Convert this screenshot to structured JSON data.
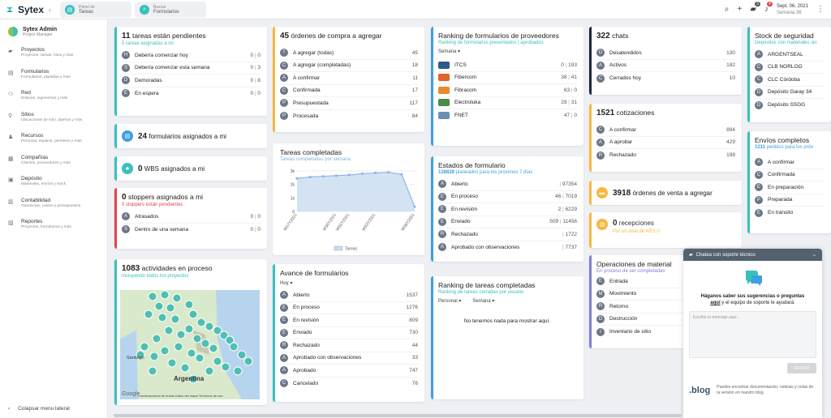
{
  "app": {
    "name": "Sytex",
    "quick_tabs": [
      {
        "title": "Panel de",
        "sub": "Tareas"
      },
      {
        "title": "Buscar",
        "sub": "Formularios"
      }
    ],
    "notifications_badge": "3",
    "alerts_badge": "4",
    "date": "Sept. 06, 2021",
    "week": "Semana 36"
  },
  "user": {
    "name": "Sytex Admin",
    "role": "Project Manager"
  },
  "sidebar": [
    {
      "icon": "folder-icon",
      "label": "Proyectos",
      "desc": "Proyectos, tareas, hitos y más"
    },
    {
      "icon": "forms-icon",
      "label": "Formularios",
      "desc": "Formularios, plantillas y más"
    },
    {
      "icon": "network-icon",
      "label": "Red",
      "desc": "Enlaces, ingenierías y más"
    },
    {
      "icon": "location-icon",
      "label": "Sitios",
      "desc": "Ubicaciones de sitio, dueños y más"
    },
    {
      "icon": "resources-icon",
      "label": "Recursos",
      "desc": "Personal, equipos, permisos y más"
    },
    {
      "icon": "company-icon",
      "label": "Compañías",
      "desc": "Clientes, proveedores y más"
    },
    {
      "icon": "warehouse-icon",
      "label": "Depósito",
      "desc": "Materiales, envíos y stock"
    },
    {
      "icon": "accounting-icon",
      "label": "Contabilidad",
      "desc": "Ganancias, costos y presupuestos"
    },
    {
      "icon": "reports-icon",
      "label": "Reportes",
      "desc": "Proyectos, formularios y más"
    }
  ],
  "collapse_label": "Colapsar menu lateral",
  "tasks": {
    "count": "11",
    "title": "tareas están pendientes",
    "sub": "5 tareas asignadas a mi",
    "rows": [
      {
        "l": "H",
        "label": "Debería comenzar hoy",
        "a": "0",
        "b": "0"
      },
      {
        "l": "S",
        "label": "Debería comenzar esta semana",
        "a": "0",
        "b": "3"
      },
      {
        "l": "D",
        "label": "Demoradas",
        "a": "0",
        "b": "8"
      },
      {
        "l": "E",
        "label": "En espera",
        "a": "0",
        "b": "0"
      }
    ]
  },
  "forms_assigned": {
    "count": "24",
    "label": "formularios asignados a mi"
  },
  "wbs": {
    "count": "0",
    "label": "WBS asignados a mi"
  },
  "stoppers": {
    "count": "0",
    "title": "stoppers asignados a mi",
    "sub": "0 stoppers están pendientes",
    "rows": [
      {
        "l": "A",
        "label": "Atrasados",
        "a": "0",
        "b": "0"
      },
      {
        "l": "S",
        "label": "Dentro de una semana",
        "a": "0",
        "b": "0"
      }
    ]
  },
  "activities": {
    "count": "1083",
    "title": "actividades en proceso",
    "sub": "Incluyendo todos los proyectos",
    "map_labels": {
      "santiago": "Santiago",
      "argentina": "Argentina",
      "google": "Google",
      "attribution": "Combinaciones de teclas   Datos del mapa   Términos de uso"
    }
  },
  "purchase": {
    "count": "45",
    "title": "órdenes de compra a agregar",
    "rows": [
      {
        "l": "T",
        "label": "A agregar (todas)",
        "v": "45"
      },
      {
        "l": "C",
        "label": "A agregar (completadas)",
        "v": "18"
      },
      {
        "l": "A",
        "label": "A confirmar",
        "v": "11"
      },
      {
        "l": "C",
        "label": "Confirmada",
        "v": "17"
      },
      {
        "l": "P",
        "label": "Presupuestada",
        "v": "117"
      },
      {
        "l": "P",
        "label": "Procesada",
        "v": "84"
      }
    ]
  },
  "completed_tasks": {
    "title": "Tareas completadas",
    "sub": "Tareas completadas por semana",
    "legend": "Tareas"
  },
  "chart_data": {
    "type": "area",
    "title": "Tareas completadas",
    "categories": [
      "W27Y2021",
      "W28Y2021",
      "W29Y2021",
      "W30Y2021",
      "W31Y2021",
      "W32Y2021",
      "W33Y2021",
      "W34Y2021",
      "W35Y2021",
      "W36Y2021"
    ],
    "series": [
      {
        "name": "Tareas",
        "values": [
          2450,
          2550,
          2600,
          2650,
          2700,
          2800,
          2850,
          2900,
          2750,
          350
        ]
      }
    ],
    "yticks": [
      "0",
      "1k",
      "2k",
      "3k"
    ],
    "ylim": [
      0,
      3000
    ],
    "xticks": [
      "W27Y2021",
      "W30Y2021",
      "W31Y2021",
      "W33Y2021",
      "W36Y2021"
    ],
    "color": "#8fb7e3"
  },
  "form_progress": {
    "title": "Avance de formularios",
    "filter": "Hoy",
    "rows": [
      {
        "l": "A",
        "label": "Abierto",
        "v": "1537"
      },
      {
        "l": "E",
        "label": "En proceso",
        "v": "1276"
      },
      {
        "l": "E",
        "label": "En revisión",
        "v": "809"
      },
      {
        "l": "E",
        "label": "Enviado",
        "v": "730"
      },
      {
        "l": "R",
        "label": "Rechazado",
        "v": "44"
      },
      {
        "l": "A",
        "label": "Aprobado con observaciones",
        "v": "33"
      },
      {
        "l": "A",
        "label": "Aprobado",
        "v": "747"
      },
      {
        "l": "C",
        "label": "Cancelado",
        "v": "76"
      }
    ]
  },
  "supplier_ranking": {
    "title": "Ranking de formularios de proveedores",
    "sub": "Ranking de formularios presentados | aprobados",
    "filter": "Semana",
    "rows": [
      {
        "label": "ITCS",
        "a": "0",
        "b": "193"
      },
      {
        "label": "Fibercom",
        "a": "38",
        "b": "41"
      },
      {
        "label": "Fibracom",
        "a": "63",
        "b": "0"
      },
      {
        "label": "Electroluka",
        "a": "29",
        "b": "31"
      },
      {
        "label": "FNET",
        "a": "47",
        "b": "0"
      }
    ]
  },
  "form_states": {
    "title": "Estados de formulario",
    "count": "128828",
    "sub": "planeados para los próximos 7 días",
    "rows": [
      {
        "l": "A",
        "label": "Abierto",
        "a": "",
        "b": "97354"
      },
      {
        "l": "E",
        "label": "En proceso",
        "a": "46",
        "b": "7019"
      },
      {
        "l": "E",
        "label": "En revisión",
        "a": "2",
        "b": "6229"
      },
      {
        "l": "E",
        "label": "Enviado",
        "a": "509",
        "b": "11456"
      },
      {
        "l": "R",
        "label": "Rechazado",
        "a": "",
        "b": "1722"
      },
      {
        "l": "A",
        "label": "Aprobado con observaciones",
        "a": "",
        "b": "7737"
      }
    ]
  },
  "task_ranking": {
    "title": "Ranking de tareas completadas",
    "sub": "Ranking de tareas cerradas por usuario",
    "filter1": "Personal",
    "filter2": "Semana",
    "empty": "No tenemos nada para mostrar aquí."
  },
  "chats": {
    "count": "322",
    "title": "chats",
    "rows": [
      {
        "l": "D",
        "label": "Desatendidos",
        "v": "130"
      },
      {
        "l": "A",
        "label": "Activos",
        "v": "182"
      },
      {
        "l": "C",
        "label": "Cerrados hoy",
        "v": "10"
      }
    ]
  },
  "quotes": {
    "count": "1521",
    "title": "cotizaciones",
    "rows": [
      {
        "l": "C",
        "label": "A confirmar",
        "v": "894"
      },
      {
        "l": "A",
        "label": "A aprobar",
        "v": "429"
      },
      {
        "l": "R",
        "label": "Rechazado",
        "v": "198"
      }
    ]
  },
  "sales": {
    "count": "3918",
    "label": "órdenes de venta a agregar"
  },
  "receptions": {
    "count": "0",
    "title": "recepciones",
    "sub": "Por un total de ARS 0"
  },
  "material_ops": {
    "title": "Operaciones de material",
    "sub": "En proceso de ser completadas",
    "rows": [
      {
        "l": "E",
        "label": "Entrada"
      },
      {
        "l": "M",
        "label": "Movimiento"
      },
      {
        "l": "R",
        "label": "Retorno"
      },
      {
        "l": "D",
        "label": "Destrucción"
      },
      {
        "l": "I",
        "label": "Inventario de sitio"
      }
    ]
  },
  "stock": {
    "title": "Stock de seguridad",
    "sub": "Depósitos con materiales sin",
    "rows": [
      {
        "l": "A",
        "label": "ARGENTSEAL"
      },
      {
        "l": "C",
        "label": "CLB NORLOG"
      },
      {
        "l": "C",
        "label": "CLC Córdoba"
      },
      {
        "l": "D",
        "label": "Depósito Garay 34"
      },
      {
        "l": "D",
        "label": "Depósito SSGG"
      }
    ]
  },
  "shipments": {
    "title": "Envíos completos",
    "count": "1211",
    "sub": "pedidos para los próx",
    "rows": [
      {
        "l": "A",
        "label": "A confirmar"
      },
      {
        "l": "C",
        "label": "Confirmada"
      },
      {
        "l": "E",
        "label": "En preparación"
      },
      {
        "l": "P",
        "label": "Preparada"
      },
      {
        "l": "E",
        "label": "En tránsito"
      }
    ]
  },
  "chat_widget": {
    "header": "Chatea con soporte técnico",
    "msg_1": "Háganos saber sus sugerencias o preguntas",
    "msg_link": "aquí",
    "msg_2": "y el equipo de soporte le ayudará:",
    "placeholder": "Escribe tu mensaje aquí...",
    "send": "ENVIAR",
    "blog": ".blog",
    "blog_text": "Puedes encontrar documentación, noticias y notas de la versión en nuestro blog."
  }
}
